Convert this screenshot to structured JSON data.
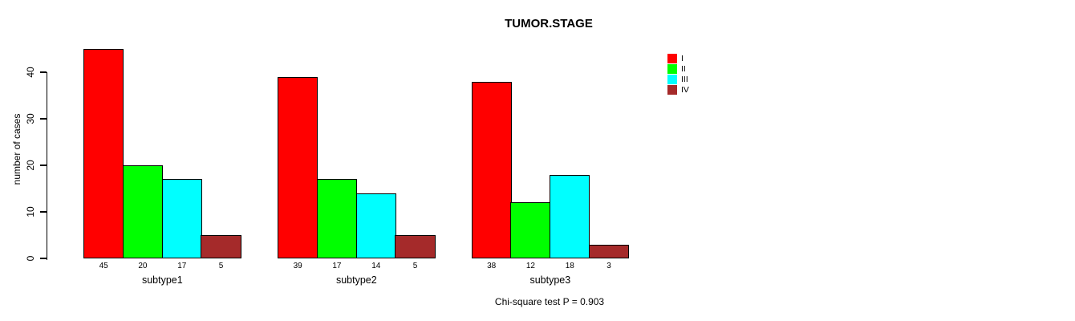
{
  "chart_data": {
    "type": "bar",
    "title": "TUMOR.STAGE",
    "ylabel": "number of cases",
    "xlabel": "",
    "ylim": [
      0,
      45
    ],
    "yticks": [
      0,
      10,
      20,
      30,
      40
    ],
    "grid": false,
    "categories": [
      "subtype1",
      "subtype2",
      "subtype3"
    ],
    "series": [
      {
        "name": "I",
        "color": "#FF0000",
        "values": [
          45,
          39,
          38
        ]
      },
      {
        "name": "II",
        "color": "#00FF00",
        "values": [
          20,
          17,
          12
        ]
      },
      {
        "name": "III",
        "color": "#00FFFF",
        "values": [
          17,
          14,
          18
        ]
      },
      {
        "name": "IV",
        "color": "#A52A2A",
        "values": [
          5,
          5,
          3
        ]
      }
    ],
    "bar_value_labels_shown": true,
    "legend_position": "top-right",
    "annotation": "Chi-square test P = 0.903"
  }
}
